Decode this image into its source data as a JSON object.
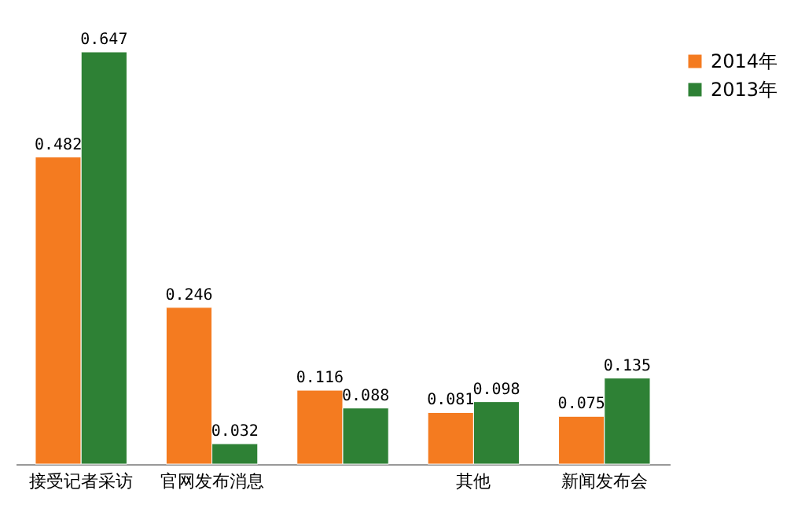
{
  "chart_data": {
    "type": "bar",
    "categories": [
      "接受记者采访",
      "官网发布消息",
      null,
      "其他",
      "新闻发布会"
    ],
    "series": [
      {
        "name": "2014年",
        "color": "#f47b20",
        "values": [
          0.482,
          0.246,
          0.116,
          0.081,
          0.075
        ]
      },
      {
        "name": "2013年",
        "color": "#2e8135",
        "values": [
          0.647,
          0.032,
          0.088,
          0.098,
          0.135
        ]
      }
    ],
    "data_labels": true,
    "legend": "right",
    "grid": false
  }
}
